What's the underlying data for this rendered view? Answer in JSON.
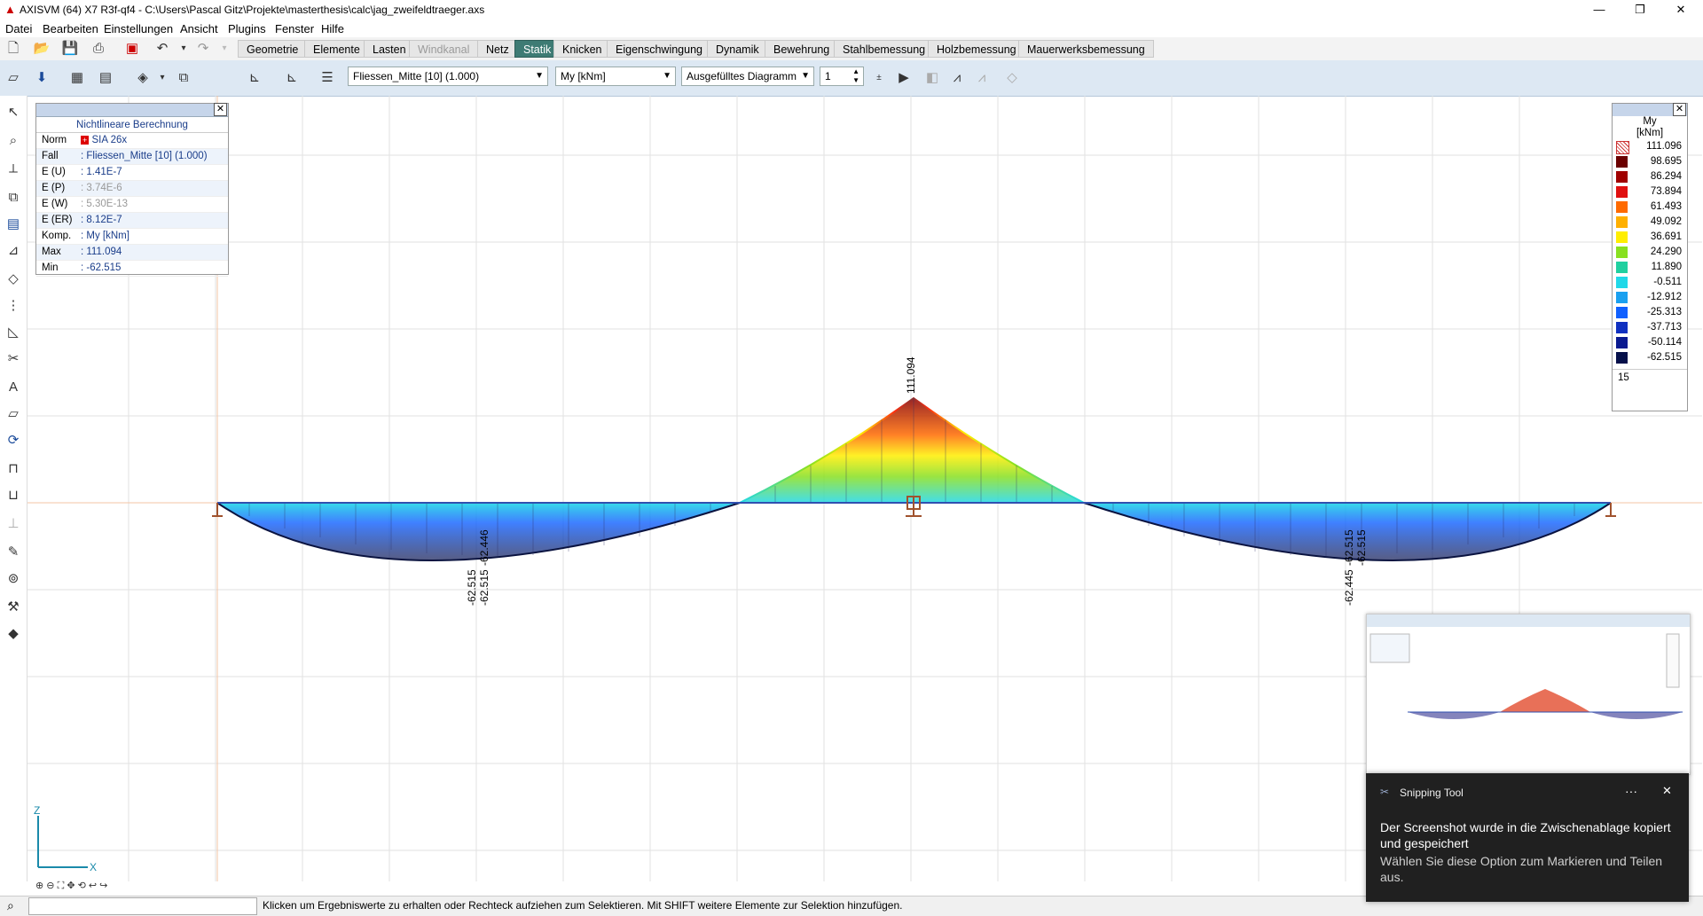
{
  "window": {
    "title": "AXISVM (64) X7 R3f-qf4 - C:\\Users\\Pascal Gitz\\Projekte\\masterthesis\\calc\\jag_zweifeldtraeger.axs",
    "minimize": "—",
    "maximize": "❐",
    "close": "✕"
  },
  "menu": [
    "Datei",
    "Bearbeiten",
    "Einstellungen",
    "Ansicht",
    "Plugins",
    "Fenster",
    "Hilfe"
  ],
  "tabs": [
    {
      "label": "Geometrie",
      "state": "normal"
    },
    {
      "label": "Elemente",
      "state": "normal"
    },
    {
      "label": "Lasten",
      "state": "normal"
    },
    {
      "label": "Windkanal",
      "state": "disabled"
    },
    {
      "label": "Netz",
      "state": "normal"
    },
    {
      "label": "Statik",
      "state": "active"
    },
    {
      "label": "Knicken",
      "state": "normal"
    },
    {
      "label": "Eigenschwingung",
      "state": "normal"
    },
    {
      "label": "Dynamik",
      "state": "normal"
    },
    {
      "label": "Bewehrung",
      "state": "normal"
    },
    {
      "label": "Stahlbemessung",
      "state": "normal"
    },
    {
      "label": "Holzbemessung",
      "state": "normal"
    },
    {
      "label": "Mauerwerksbemessung",
      "state": "normal"
    }
  ],
  "toolbar2": {
    "loadcase": "Fliessen_Mitte [10] (1.000)",
    "component": "My [kNm]",
    "display_mode": "Ausgefülltes Diagramm",
    "scale": "1"
  },
  "info_panel": {
    "title": "Nichtlineare Berechnung",
    "rows": [
      {
        "k": "Norm",
        "v": "SIA 26x"
      },
      {
        "k": "Fall",
        "v": ": Fliessen_Mitte [10] (1.000)"
      },
      {
        "k": "E (U)",
        "v": ": 1.41E-7"
      },
      {
        "k": "E (P)",
        "v": ": 3.74E-6"
      },
      {
        "k": "E (W)",
        "v": ": 5.30E-13"
      },
      {
        "k": "E (ER)",
        "v": ": 8.12E-7"
      },
      {
        "k": "Komp.",
        "v": ": My [kNm]"
      },
      {
        "k": "Max",
        "v": ": 111.094"
      },
      {
        "k": "Min",
        "v": ": -62.515"
      }
    ]
  },
  "legend": {
    "title": "My",
    "unit": "[kNm]",
    "values": [
      "111.096",
      "98.695",
      "86.294",
      "73.894",
      "61.493",
      "49.092",
      "36.691",
      "24.290",
      "11.890",
      "-0.511",
      "-12.912",
      "-25.313",
      "-37.713",
      "-50.114",
      "-62.515"
    ],
    "colors": [
      "#ffffff",
      "#6b0000",
      "#a00000",
      "#e01010",
      "#ff6a00",
      "#ffb000",
      "#ffee00",
      "#88e020",
      "#20d0a0",
      "#20d8e8",
      "#1aa0f0",
      "#1060ff",
      "#1030c0",
      "#0a1a90",
      "#06104a"
    ],
    "count": "15"
  },
  "diagram_labels": {
    "max_label": "111.094",
    "left_min_a": "-62.515",
    "left_min_b": "-62.515",
    "left_min_c": "-62.446",
    "right_min_a": "-62.515",
    "right_min_b": "-62.515",
    "right_min_c": "-62.445"
  },
  "axes": {
    "z": "Z",
    "x": "X"
  },
  "status_text": "Klicken um Ergebniswerte zu erhalten oder Rechteck aufziehen zum Selektieren. Mit SHIFT weitere Elemente zur Selektion hinzufügen.",
  "snip": {
    "app": "Snipping Tool",
    "more": "···",
    "close": "✕",
    "message": "Der Screenshot wurde in die Zwischenablage kopiert und gespeichert",
    "hint": "Wählen Sie diese Option zum Markieren und Teilen aus."
  }
}
